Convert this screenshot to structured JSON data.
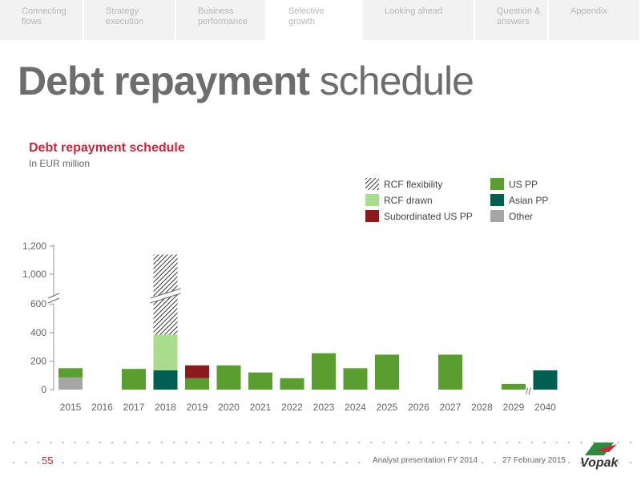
{
  "nav": {
    "tabs": [
      {
        "label": "Connecting flows",
        "active": false
      },
      {
        "label": "Strategy execution",
        "active": false
      },
      {
        "label": "Business performance",
        "active": false
      },
      {
        "label": "Selective growth",
        "active": true
      },
      {
        "label": "Looking ahead",
        "active": false
      },
      {
        "label": "Question & answers",
        "active": false
      },
      {
        "label": "Appendix",
        "active": false
      }
    ]
  },
  "page": {
    "title_bold": "Debt repayment",
    "title_light": "schedule"
  },
  "chart_data": {
    "type": "bar",
    "stacked": true,
    "title": "Debt repayment schedule",
    "subtitle": "In EUR million",
    "y_ticks": [
      0,
      200,
      400,
      600,
      1000,
      1200
    ],
    "y_tick_labels": [
      "0",
      "200",
      "400",
      "600",
      "1,000",
      "1,200"
    ],
    "y_axis_break": [
      600,
      1000
    ],
    "x_axis_break_before": "2040",
    "categories": [
      "2015",
      "2016",
      "2017",
      "2018",
      "2019",
      "2020",
      "2021",
      "2022",
      "2023",
      "2024",
      "2025",
      "2026",
      "2027",
      "2028",
      "2029",
      "2040"
    ],
    "legend_position": "top-right",
    "series": [
      {
        "name": "Other",
        "color": "#a6a6a6",
        "pattern": "solid",
        "values": [
          85,
          0,
          0,
          0,
          0,
          0,
          0,
          0,
          0,
          0,
          0,
          0,
          0,
          0,
          0,
          0
        ]
      },
      {
        "name": "Asian PP",
        "color": "#005f50",
        "pattern": "solid",
        "values": [
          0,
          0,
          0,
          135,
          0,
          0,
          0,
          0,
          0,
          0,
          0,
          0,
          0,
          0,
          0,
          135
        ]
      },
      {
        "name": "US PP",
        "color": "#5b9e30",
        "pattern": "solid",
        "values": [
          65,
          0,
          145,
          0,
          80,
          170,
          120,
          80,
          255,
          150,
          245,
          0,
          245,
          0,
          40,
          0
        ]
      },
      {
        "name": "Subordinated US PP",
        "color": "#8b1a1c",
        "pattern": "solid",
        "values": [
          0,
          0,
          0,
          0,
          90,
          0,
          0,
          0,
          0,
          0,
          0,
          0,
          0,
          0,
          0,
          0
        ]
      },
      {
        "name": "RCF drawn",
        "color": "#a9dc8c",
        "pattern": "solid",
        "values": [
          0,
          0,
          0,
          250,
          0,
          0,
          0,
          0,
          0,
          0,
          0,
          0,
          0,
          0,
          0,
          0
        ]
      },
      {
        "name": "RCF flexibility",
        "color": "#333333",
        "pattern": "hatched",
        "values": [
          0,
          0,
          0,
          750,
          0,
          0,
          0,
          0,
          0,
          0,
          0,
          0,
          0,
          0,
          0,
          0
        ]
      }
    ],
    "legend_order": [
      "RCF flexibility",
      "RCF drawn",
      "Subordinated US PP",
      "US PP",
      "Asian PP",
      "Other"
    ]
  },
  "footer": {
    "page_number": "55",
    "presentation": "Analyst presentation FY 2014",
    "date": "27 February 2015",
    "logo_text": "Vopak"
  }
}
